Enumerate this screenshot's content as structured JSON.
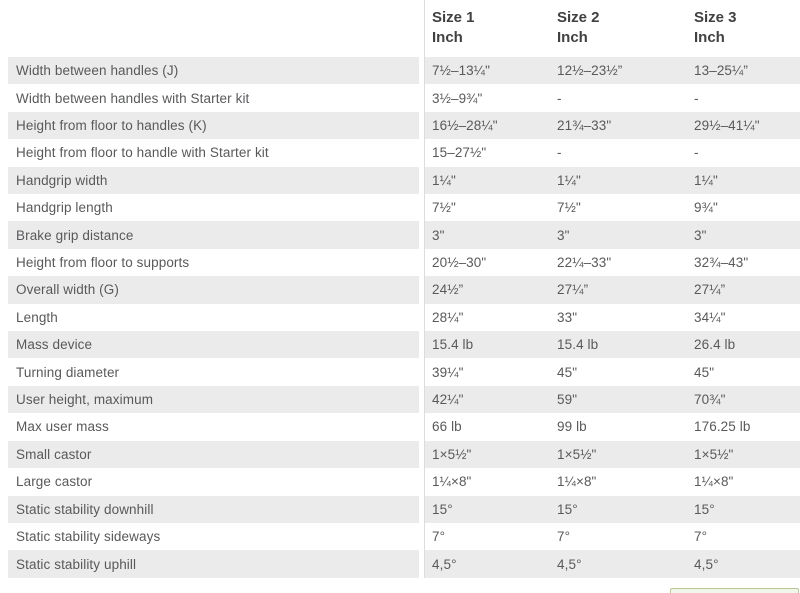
{
  "table": {
    "columns": [
      {
        "title": "Size 1",
        "unit": "Inch"
      },
      {
        "title": "Size 2",
        "unit": "Inch"
      },
      {
        "title": "Size 3",
        "unit": "Inch"
      }
    ],
    "rows": [
      {
        "label": "Width between handles (J)",
        "values": [
          "7½–13¼\"",
          "12½–23½”",
          "13–25¼”"
        ]
      },
      {
        "label": "Width between handles with Starter kit",
        "values": [
          "3½–9¾\"",
          "-",
          "-"
        ]
      },
      {
        "label": "Height from floor to handles (K)",
        "values": [
          "16½–28¼\"",
          "21¾–33\"",
          "29½–41¼\""
        ]
      },
      {
        "label": "Height from floor to handle with Starter kit",
        "values": [
          "15–27½\"",
          "-",
          "-"
        ]
      },
      {
        "label": "Handgrip width",
        "values": [
          "1¼\"",
          "1¼\"",
          "1¼\""
        ]
      },
      {
        "label": "Handgrip length",
        "values": [
          "7½\"",
          "7½\"",
          "9¾\""
        ]
      },
      {
        "label": "Brake grip distance",
        "values": [
          "3\"",
          "3\"",
          "3\""
        ]
      },
      {
        "label": "Height from floor to supports",
        "values": [
          "20½–30\"",
          "22¼–33\"",
          "32¾–43\""
        ]
      },
      {
        "label": "Overall width (G)",
        "values": [
          "24½”",
          "27¼”",
          "27¼”"
        ]
      },
      {
        "label": "Length",
        "values": [
          "28¼\"",
          "33\"",
          "34¼\""
        ]
      },
      {
        "label": "Mass device",
        "values": [
          "15.4 lb",
          "15.4 lb",
          "26.4 lb"
        ]
      },
      {
        "label": "Turning diameter",
        "values": [
          "39¼\"",
          "45\"",
          "45\""
        ]
      },
      {
        "label": "User height, maximum",
        "values": [
          "42¼\"",
          "59\"",
          "70¾\""
        ]
      },
      {
        "label": "Max user mass",
        "values": [
          "66 lb",
          "99 lb",
          "176.25 lb"
        ]
      },
      {
        "label": "Small castor",
        "values": [
          "1×5½\"",
          "1×5½\"",
          "1×5½\""
        ]
      },
      {
        "label": "Large castor",
        "values": [
          "1¼×8\"",
          "1¼×8\"",
          "1¼×8\""
        ]
      },
      {
        "label": "Static stability downhill",
        "values": [
          "15°",
          "15°",
          "15°"
        ]
      },
      {
        "label": "Static stability sideways",
        "values": [
          "7°",
          "7°",
          "7°"
        ]
      },
      {
        "label": "Static stability uphill",
        "values": [
          "4,5°",
          "4,5°",
          "4,5°"
        ]
      }
    ]
  },
  "colors": {
    "row_stripe": "#ebebeb",
    "text": "#58595b",
    "header_text": "#414042",
    "divider": "#dcdcdc",
    "green_edge_border": "#b7c795",
    "green_edge_fill": "#f2f6ea"
  }
}
